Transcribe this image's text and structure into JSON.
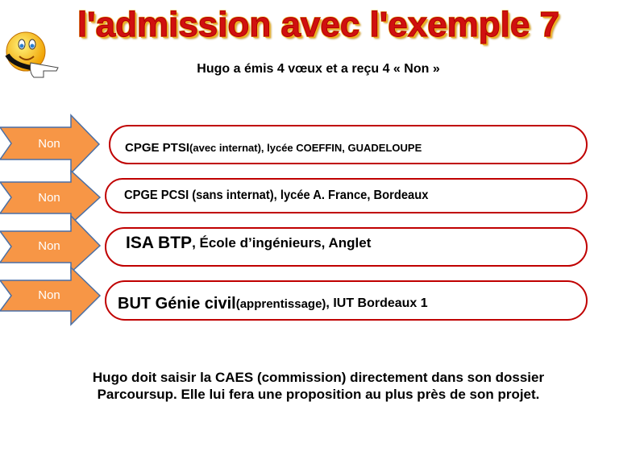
{
  "title": "l'admission avec l'exemple 7",
  "subtitle": "Hugo a émis 4 vœux et a reçu 4 « Non »",
  "colors": {
    "arrow_fill": "#f79646",
    "arrow_stroke": "#4a6fa5",
    "box_border": "#c00000",
    "title": "#d01010"
  },
  "wishes": [
    {
      "status": "Non",
      "name": "CPGE PTSI",
      "detail_small": " (avec internat), lycée COEFFIN, GUADELOUPE",
      "detail": ""
    },
    {
      "status": "Non",
      "name": "CPGE PCSI (sans internat), lycée A. France, Bordeaux",
      "detail_small": "",
      "detail": ""
    },
    {
      "status": "Non",
      "name": "ISA BTP",
      "detail_small": "",
      "detail": ", École d’ingénieurs, Anglet"
    },
    {
      "status": "Non",
      "name": "BUT Génie civil",
      "detail_small": " (apprentissage)",
      "detail": ", IUT Bordeaux 1"
    }
  ],
  "footer": {
    "line1": "Hugo doit saisir la CAES (commission) directement dans son dossier",
    "line2": "Parcoursup. Elle lui fera une proposition au plus près de son projet."
  }
}
